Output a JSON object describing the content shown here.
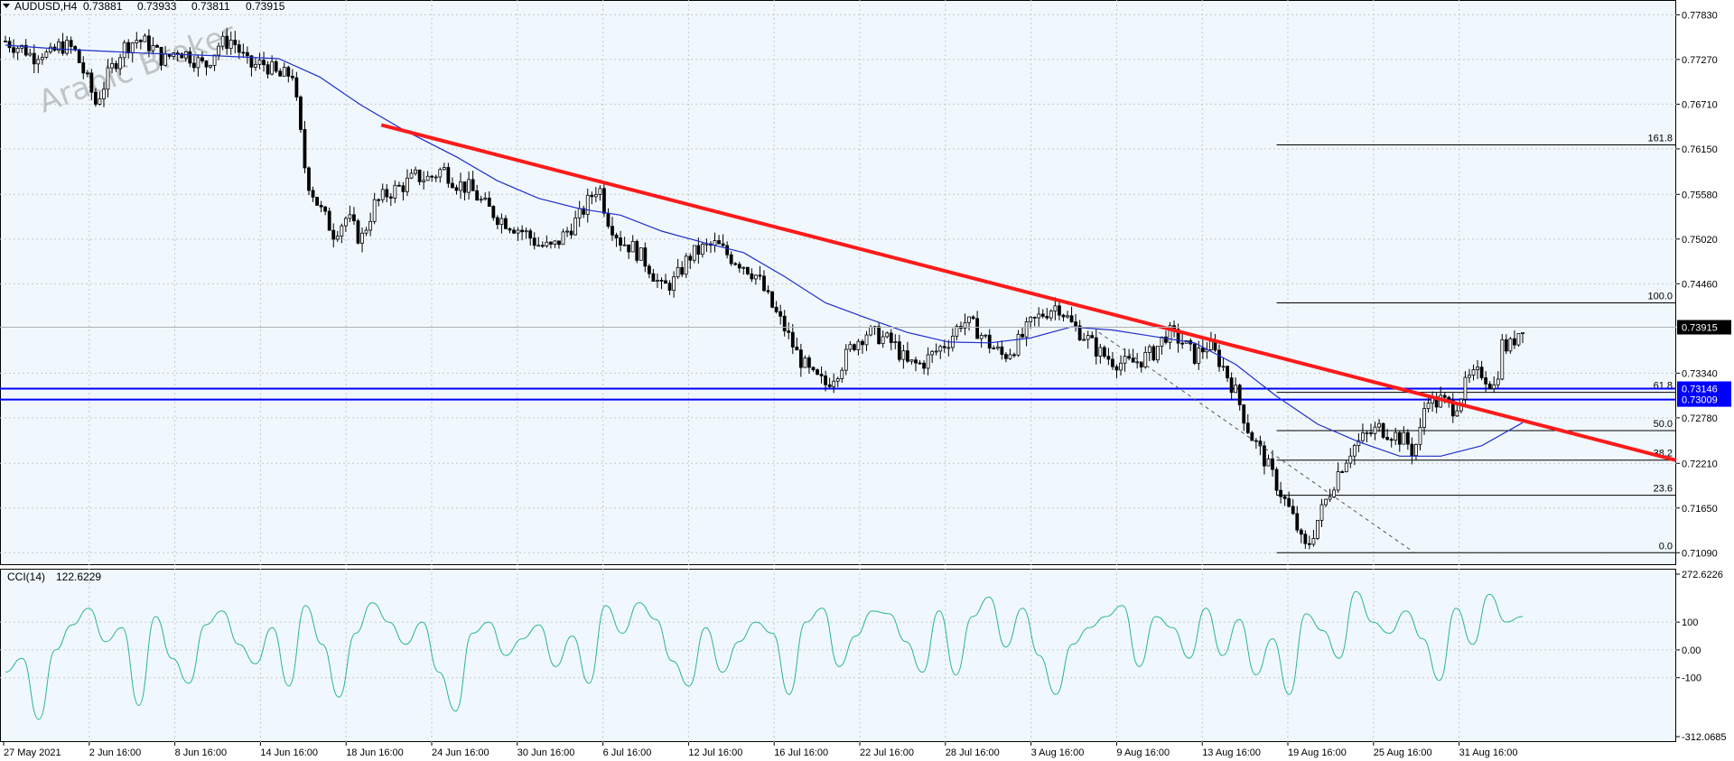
{
  "header": {
    "symbol": "AUDUSD,H4",
    "open": "0.73881",
    "high": "0.73933",
    "low": "0.73811",
    "close": "0.73915"
  },
  "watermark": "Arabic Broker",
  "colors": {
    "background": "#f0f8fd",
    "candle": "#000000",
    "moving_average": "#1f2dcc",
    "trendline": "#ff1a1a",
    "horizontal_levels": "#0000ff",
    "fibonacci": "#000000",
    "cci_line": "#2ab39b",
    "grid": "#c8c8c8"
  },
  "chart_data": [
    {
      "type": "candlestick",
      "symbol": "AUDUSD",
      "timeframe": "H4",
      "y_ticks": [
        "0.77830",
        "0.77270",
        "0.76710",
        "0.76150",
        "0.75580",
        "0.75020",
        "0.74460",
        "0.73340",
        "0.72780",
        "0.72210",
        "0.71650",
        "0.71090"
      ],
      "ylim": [
        0.7098,
        0.7797
      ],
      "x_ticks": [
        "27 May 2021",
        "2 Jun 16:00",
        "8 Jun 16:00",
        "14 Jun 16:00",
        "18 Jun 16:00",
        "24 Jun 16:00",
        "30 Jun 16:00",
        "6 Jul 16:00",
        "12 Jul 16:00",
        "16 Jul 16:00",
        "22 Jul 16:00",
        "28 Jul 16:00",
        "3 Aug 16:00",
        "9 Aug 16:00",
        "13 Aug 16:00",
        "19 Aug 16:00",
        "25 Aug 16:00",
        "31 Aug 16:00"
      ],
      "current_price": "0.73915",
      "horizontal_levels": [
        {
          "label": "0.73146",
          "value": 0.73146
        },
        {
          "label": "0.73009",
          "value": 0.73009
        }
      ],
      "fibonacci": [
        {
          "label": "161.8",
          "value": 0.762
        },
        {
          "label": "100.0",
          "value": 0.7422
        },
        {
          "label": "61.8",
          "value": 0.731
        },
        {
          "label": "50.0",
          "value": 0.7262
        },
        {
          "label": "38.2",
          "value": 0.7225
        },
        {
          "label": "23.6",
          "value": 0.7181
        },
        {
          "label": "0.0",
          "value": 0.7109
        }
      ],
      "close_path": [
        [
          0,
          0.775
        ],
        [
          6,
          0.7745
        ],
        [
          14,
          0.774
        ],
        [
          20,
          0.773
        ],
        [
          26,
          0.7738
        ],
        [
          32,
          0.773
        ],
        [
          40,
          0.7745
        ],
        [
          50,
          0.774
        ],
        [
          60,
          0.77
        ],
        [
          66,
          0.7672
        ],
        [
          76,
          0.771
        ],
        [
          86,
          0.7742
        ],
        [
          96,
          0.7752
        ],
        [
          106,
          0.7745
        ],
        [
          116,
          0.7725
        ],
        [
          126,
          0.774
        ],
        [
          136,
          0.773
        ],
        [
          146,
          0.7718
        ],
        [
          156,
          0.7745
        ],
        [
          166,
          0.7752
        ],
        [
          178,
          0.7718
        ],
        [
          190,
          0.7722
        ],
        [
          200,
          0.7705
        ],
        [
          210,
          0.771
        ],
        [
          220,
          0.758
        ],
        [
          230,
          0.754
        ],
        [
          240,
          0.751
        ],
        [
          250,
          0.753
        ],
        [
          260,
          0.75
        ],
        [
          270,
          0.7545
        ],
        [
          280,
          0.756
        ],
        [
          290,
          0.7568
        ],
        [
          300,
          0.758
        ],
        [
          310,
          0.7578
        ],
        [
          320,
          0.759
        ],
        [
          330,
          0.7572
        ],
        [
          340,
          0.7565
        ],
        [
          350,
          0.7545
        ],
        [
          360,
          0.753
        ],
        [
          370,
          0.752
        ],
        [
          380,
          0.751
        ],
        [
          390,
          0.7495
        ],
        [
          400,
          0.749
        ],
        [
          410,
          0.751
        ],
        [
          420,
          0.753
        ],
        [
          430,
          0.756
        ],
        [
          434,
          0.757
        ],
        [
          440,
          0.753
        ],
        [
          450,
          0.75
        ],
        [
          460,
          0.749
        ],
        [
          470,
          0.747
        ],
        [
          480,
          0.744
        ],
        [
          490,
          0.745
        ],
        [
          500,
          0.748
        ],
        [
          510,
          0.749
        ],
        [
          520,
          0.7495
        ],
        [
          530,
          0.748
        ],
        [
          540,
          0.747
        ],
        [
          550,
          0.7455
        ],
        [
          560,
          0.742
        ],
        [
          570,
          0.739
        ],
        [
          580,
          0.7355
        ],
        [
          590,
          0.733
        ],
        [
          600,
          0.732
        ],
        [
          610,
          0.734
        ],
        [
          620,
          0.737
        ],
        [
          630,
          0.7385
        ],
        [
          640,
          0.738
        ],
        [
          650,
          0.737
        ],
        [
          660,
          0.7345
        ],
        [
          670,
          0.7345
        ],
        [
          680,
          0.736
        ],
        [
          690,
          0.7375
        ],
        [
          700,
          0.74
        ],
        [
          710,
          0.739
        ],
        [
          720,
          0.737
        ],
        [
          730,
          0.7355
        ],
        [
          740,
          0.737
        ],
        [
          750,
          0.7395
        ],
        [
          760,
          0.741
        ],
        [
          770,
          0.742
        ],
        [
          780,
          0.7395
        ],
        [
          790,
          0.738
        ],
        [
          800,
          0.736
        ],
        [
          810,
          0.735
        ],
        [
          820,
          0.7345
        ],
        [
          830,
          0.735
        ],
        [
          840,
          0.736
        ],
        [
          850,
          0.7385
        ],
        [
          860,
          0.7375
        ],
        [
          870,
          0.7355
        ],
        [
          880,
          0.737
        ],
        [
          890,
          0.7345
        ],
        [
          900,
          0.731
        ],
        [
          910,
          0.726
        ],
        [
          920,
          0.723
        ],
        [
          930,
          0.7195
        ],
        [
          940,
          0.716
        ],
        [
          945,
          0.714
        ],
        [
          950,
          0.7112
        ],
        [
          955,
          0.7125
        ],
        [
          960,
          0.715
        ],
        [
          965,
          0.717
        ],
        [
          975,
          0.721
        ],
        [
          985,
          0.724
        ],
        [
          995,
          0.7255
        ],
        [
          1005,
          0.7265
        ],
        [
          1015,
          0.7258
        ],
        [
          1025,
          0.7248
        ],
        [
          1030,
          0.7235
        ],
        [
          1035,
          0.726
        ],
        [
          1040,
          0.731
        ],
        [
          1045,
          0.7295
        ],
        [
          1050,
          0.73
        ],
        [
          1060,
          0.729
        ],
        [
          1070,
          0.7325
        ],
        [
          1080,
          0.7335
        ],
        [
          1090,
          0.7315
        ],
        [
          1095,
          0.737
        ],
        [
          1100,
          0.7365
        ],
        [
          1110,
          0.7395
        ]
      ],
      "moving_average": [
        [
          0,
          0.7745
        ],
        [
          40,
          0.774
        ],
        [
          100,
          0.7735
        ],
        [
          150,
          0.7732
        ],
        [
          200,
          0.7728
        ],
        [
          230,
          0.7705
        ],
        [
          260,
          0.767
        ],
        [
          290,
          0.764
        ],
        [
          330,
          0.7605
        ],
        [
          360,
          0.7575
        ],
        [
          390,
          0.7553
        ],
        [
          420,
          0.754
        ],
        [
          450,
          0.7532
        ],
        [
          480,
          0.7512
        ],
        [
          510,
          0.7498
        ],
        [
          540,
          0.7485
        ],
        [
          570,
          0.7455
        ],
        [
          600,
          0.7422
        ],
        [
          630,
          0.7403
        ],
        [
          660,
          0.7385
        ],
        [
          690,
          0.7373
        ],
        [
          720,
          0.7372
        ],
        [
          750,
          0.7378
        ],
        [
          780,
          0.7392
        ],
        [
          810,
          0.7388
        ],
        [
          840,
          0.738
        ],
        [
          870,
          0.7372
        ],
        [
          900,
          0.7345
        ],
        [
          930,
          0.7305
        ],
        [
          960,
          0.727
        ],
        [
          990,
          0.7248
        ],
        [
          1020,
          0.723
        ],
        [
          1050,
          0.723
        ],
        [
          1080,
          0.7243
        ],
        [
          1110,
          0.7272
        ]
      ],
      "trendline": [
        [
          275,
          0.7645
        ],
        [
          1215,
          0.7228
        ]
      ],
      "projection_line": [
        [
          800,
          0.7385
        ],
        [
          1030,
          0.711
        ]
      ]
    },
    {
      "type": "line",
      "name": "CCI(14)",
      "value_label": "122.6229",
      "y_ticks": [
        "272.6226",
        "100",
        "0.00",
        "-100",
        "-312.0685"
      ],
      "ylim": [
        -312.0685,
        272.6226
      ],
      "values": [
        -80,
        -30,
        -250,
        0,
        90,
        150,
        30,
        80,
        -200,
        120,
        -30,
        -120,
        90,
        140,
        20,
        -50,
        80,
        -130,
        160,
        20,
        -170,
        60,
        170,
        100,
        20,
        100,
        -80,
        -220,
        60,
        100,
        -20,
        40,
        90,
        -60,
        50,
        -120,
        160,
        60,
        170,
        110,
        -40,
        -130,
        80,
        -80,
        30,
        100,
        60,
        -160,
        100,
        150,
        -60,
        50,
        140,
        130,
        30,
        -80,
        140,
        -90,
        120,
        190,
        10,
        150,
        -20,
        -160,
        20,
        80,
        120,
        160,
        -60,
        120,
        80,
        -30,
        150,
        -20,
        110,
        -90,
        40,
        -160,
        130,
        70,
        -30,
        210,
        100,
        60,
        140,
        40,
        -110,
        150,
        20,
        200,
        100,
        120
      ]
    }
  ]
}
